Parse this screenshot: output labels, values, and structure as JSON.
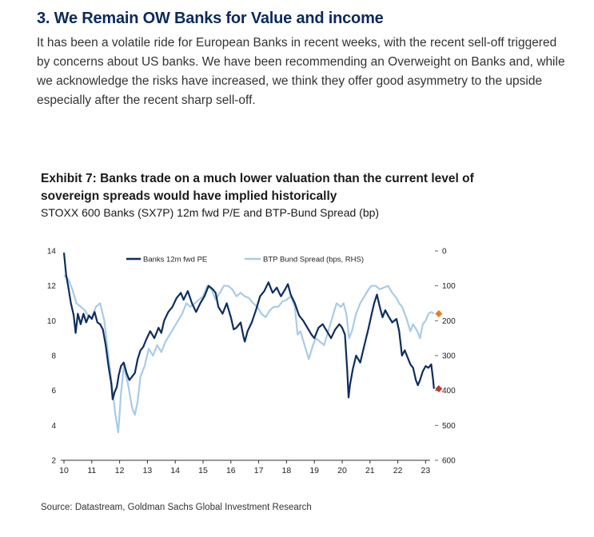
{
  "section": {
    "heading": "3. We Remain OW Banks for Value and income",
    "paragraph": "It has been a volatile ride for European Banks in recent weeks, with the recent sell-off triggered by concerns about US banks. We have been recommending an Overweight on Banks and, while we acknowledge the risks have increased, we think they offer good asymmetry to the upside especially after the recent sharp sell-off."
  },
  "exhibit": {
    "title": "Exhibit 7: Banks trade on a much lower valuation than the current level of sovereign spreads would have implied historically",
    "subtitle": "STOXX 600 Banks (SX7P) 12m fwd P/E and BTP-Bund Spread (bp)",
    "source": "Source: Datastream, Goldman Sachs Global Investment Research"
  },
  "colors": {
    "banks_series": "#0d2d5e",
    "spread_series": "#a8cbe8",
    "banks_end_marker": "#c0392b",
    "spread_end_marker": "#e67e22",
    "heading": "#0b2a5a"
  },
  "chart_data": {
    "type": "line",
    "x_tick_labels": [
      "10",
      "11",
      "12",
      "13",
      "14",
      "15",
      "16",
      "17",
      "18",
      "19",
      "20",
      "21",
      "22",
      "23"
    ],
    "xlim": [
      2010.0,
      2023.35
    ],
    "y_left": {
      "lim": [
        2,
        14
      ],
      "ticks": [
        "2",
        "4",
        "6",
        "8",
        "10",
        "12",
        "14"
      ]
    },
    "y_right": {
      "lim": [
        600,
        0
      ],
      "inverted": true,
      "ticks": [
        "600",
        "500",
        "400",
        "300",
        "200",
        "100",
        "0"
      ]
    },
    "legend_position": "top-center",
    "series": [
      {
        "name": "Banks 12m fwd PE",
        "axis": "left",
        "points": [
          [
            2010.0,
            13.9
          ],
          [
            2010.08,
            12.6
          ],
          [
            2010.15,
            12.0
          ],
          [
            2010.25,
            11.0
          ],
          [
            2010.35,
            10.3
          ],
          [
            2010.42,
            9.3
          ],
          [
            2010.5,
            10.4
          ],
          [
            2010.6,
            9.8
          ],
          [
            2010.7,
            10.4
          ],
          [
            2010.8,
            9.9
          ],
          [
            2010.9,
            10.3
          ],
          [
            2011.0,
            10.1
          ],
          [
            2011.1,
            10.5
          ],
          [
            2011.2,
            9.9
          ],
          [
            2011.3,
            9.8
          ],
          [
            2011.4,
            9.5
          ],
          [
            2011.5,
            8.6
          ],
          [
            2011.6,
            7.4
          ],
          [
            2011.7,
            6.4
          ],
          [
            2011.75,
            5.5
          ],
          [
            2011.82,
            5.9
          ],
          [
            2011.9,
            6.2
          ],
          [
            2011.97,
            6.9
          ],
          [
            2012.05,
            7.4
          ],
          [
            2012.15,
            7.6
          ],
          [
            2012.25,
            7.0
          ],
          [
            2012.35,
            6.6
          ],
          [
            2012.45,
            6.8
          ],
          [
            2012.55,
            7.0
          ],
          [
            2012.65,
            7.8
          ],
          [
            2012.75,
            8.3
          ],
          [
            2012.85,
            8.5
          ],
          [
            2012.95,
            8.9
          ],
          [
            2013.1,
            9.4
          ],
          [
            2013.25,
            9.0
          ],
          [
            2013.4,
            9.6
          ],
          [
            2013.5,
            9.3
          ],
          [
            2013.6,
            10.0
          ],
          [
            2013.75,
            10.5
          ],
          [
            2013.9,
            10.8
          ],
          [
            2014.05,
            11.3
          ],
          [
            2014.2,
            11.6
          ],
          [
            2014.3,
            11.2
          ],
          [
            2014.45,
            11.7
          ],
          [
            2014.6,
            11.0
          ],
          [
            2014.75,
            10.5
          ],
          [
            2014.9,
            11.0
          ],
          [
            2015.05,
            11.4
          ],
          [
            2015.2,
            12.0
          ],
          [
            2015.35,
            11.8
          ],
          [
            2015.45,
            11.6
          ],
          [
            2015.55,
            10.8
          ],
          [
            2015.7,
            10.4
          ],
          [
            2015.85,
            11.0
          ],
          [
            2016.0,
            10.2
          ],
          [
            2016.1,
            9.5
          ],
          [
            2016.2,
            9.6
          ],
          [
            2016.35,
            9.9
          ],
          [
            2016.45,
            9.1
          ],
          [
            2016.5,
            8.8
          ],
          [
            2016.6,
            9.4
          ],
          [
            2016.75,
            9.9
          ],
          [
            2016.9,
            10.6
          ],
          [
            2017.05,
            11.4
          ],
          [
            2017.2,
            11.7
          ],
          [
            2017.35,
            12.2
          ],
          [
            2017.5,
            11.6
          ],
          [
            2017.65,
            11.9
          ],
          [
            2017.8,
            11.4
          ],
          [
            2017.95,
            11.8
          ],
          [
            2018.05,
            12.1
          ],
          [
            2018.15,
            11.5
          ],
          [
            2018.3,
            11.0
          ],
          [
            2018.45,
            10.3
          ],
          [
            2018.6,
            10.0
          ],
          [
            2018.75,
            9.6
          ],
          [
            2018.9,
            9.2
          ],
          [
            2019.0,
            9.0
          ],
          [
            2019.15,
            9.6
          ],
          [
            2019.3,
            9.8
          ],
          [
            2019.45,
            9.4
          ],
          [
            2019.6,
            9.0
          ],
          [
            2019.75,
            9.5
          ],
          [
            2019.9,
            9.8
          ],
          [
            2020.0,
            9.6
          ],
          [
            2020.1,
            9.2
          ],
          [
            2020.18,
            7.2
          ],
          [
            2020.23,
            5.6
          ],
          [
            2020.28,
            6.3
          ],
          [
            2020.38,
            7.2
          ],
          [
            2020.5,
            8.0
          ],
          [
            2020.65,
            7.6
          ],
          [
            2020.8,
            8.6
          ],
          [
            2020.95,
            9.6
          ],
          [
            2021.05,
            10.3
          ],
          [
            2021.15,
            11.0
          ],
          [
            2021.25,
            11.5
          ],
          [
            2021.35,
            10.8
          ],
          [
            2021.45,
            10.2
          ],
          [
            2021.55,
            10.6
          ],
          [
            2021.65,
            10.3
          ],
          [
            2021.8,
            9.9
          ],
          [
            2021.95,
            10.1
          ],
          [
            2022.05,
            9.4
          ],
          [
            2022.15,
            8.0
          ],
          [
            2022.25,
            8.3
          ],
          [
            2022.35,
            7.9
          ],
          [
            2022.45,
            7.5
          ],
          [
            2022.55,
            7.3
          ],
          [
            2022.65,
            6.6
          ],
          [
            2022.72,
            6.3
          ],
          [
            2022.8,
            6.6
          ],
          [
            2022.9,
            7.1
          ],
          [
            2023.0,
            7.4
          ],
          [
            2023.1,
            7.3
          ],
          [
            2023.2,
            7.5
          ],
          [
            2023.27,
            6.6
          ],
          [
            2023.3,
            6.1
          ]
        ]
      },
      {
        "name": "BTP Bund Spread (bps, RHS)",
        "axis": "right",
        "points": [
          [
            2010.0,
            70
          ],
          [
            2010.15,
            80
          ],
          [
            2010.3,
            110
          ],
          [
            2010.45,
            150
          ],
          [
            2010.6,
            160
          ],
          [
            2010.75,
            170
          ],
          [
            2010.9,
            190
          ],
          [
            2011.0,
            190
          ],
          [
            2011.15,
            160
          ],
          [
            2011.3,
            150
          ],
          [
            2011.45,
            200
          ],
          [
            2011.55,
            270
          ],
          [
            2011.7,
            370
          ],
          [
            2011.85,
            470
          ],
          [
            2011.95,
            520
          ],
          [
            2012.05,
            410
          ],
          [
            2012.15,
            330
          ],
          [
            2012.3,
            380
          ],
          [
            2012.45,
            450
          ],
          [
            2012.55,
            470
          ],
          [
            2012.65,
            430
          ],
          [
            2012.75,
            360
          ],
          [
            2012.9,
            330
          ],
          [
            2013.05,
            280
          ],
          [
            2013.2,
            300
          ],
          [
            2013.35,
            270
          ],
          [
            2013.5,
            290
          ],
          [
            2013.65,
            260
          ],
          [
            2013.8,
            240
          ],
          [
            2013.95,
            220
          ],
          [
            2014.1,
            200
          ],
          [
            2014.25,
            180
          ],
          [
            2014.4,
            150
          ],
          [
            2014.55,
            160
          ],
          [
            2014.7,
            150
          ],
          [
            2014.85,
            140
          ],
          [
            2015.0,
            130
          ],
          [
            2015.15,
            100
          ],
          [
            2015.3,
            110
          ],
          [
            2015.45,
            140
          ],
          [
            2015.6,
            120
          ],
          [
            2015.75,
            100
          ],
          [
            2015.9,
            100
          ],
          [
            2016.05,
            110
          ],
          [
            2016.2,
            130
          ],
          [
            2016.35,
            120
          ],
          [
            2016.5,
            130
          ],
          [
            2016.65,
            135
          ],
          [
            2016.8,
            150
          ],
          [
            2016.95,
            160
          ],
          [
            2017.1,
            180
          ],
          [
            2017.25,
            190
          ],
          [
            2017.4,
            170
          ],
          [
            2017.55,
            160
          ],
          [
            2017.7,
            160
          ],
          [
            2017.85,
            145
          ],
          [
            2018.0,
            140
          ],
          [
            2018.15,
            130
          ],
          [
            2018.3,
            160
          ],
          [
            2018.4,
            240
          ],
          [
            2018.5,
            230
          ],
          [
            2018.65,
            270
          ],
          [
            2018.8,
            310
          ],
          [
            2018.95,
            270
          ],
          [
            2019.05,
            250
          ],
          [
            2019.2,
            260
          ],
          [
            2019.35,
            270
          ],
          [
            2019.5,
            230
          ],
          [
            2019.65,
            190
          ],
          [
            2019.8,
            150
          ],
          [
            2019.95,
            160
          ],
          [
            2020.05,
            150
          ],
          [
            2020.15,
            180
          ],
          [
            2020.25,
            250
          ],
          [
            2020.35,
            230
          ],
          [
            2020.5,
            180
          ],
          [
            2020.65,
            150
          ],
          [
            2020.8,
            130
          ],
          [
            2020.95,
            110
          ],
          [
            2021.05,
            100
          ],
          [
            2021.2,
            100
          ],
          [
            2021.35,
            110
          ],
          [
            2021.5,
            105
          ],
          [
            2021.65,
            100
          ],
          [
            2021.8,
            120
          ],
          [
            2021.95,
            135
          ],
          [
            2022.05,
            150
          ],
          [
            2022.15,
            160
          ],
          [
            2022.3,
            190
          ],
          [
            2022.45,
            230
          ],
          [
            2022.55,
            210
          ],
          [
            2022.7,
            230
          ],
          [
            2022.8,
            250
          ],
          [
            2022.9,
            210
          ],
          [
            2023.0,
            200
          ],
          [
            2023.1,
            180
          ],
          [
            2023.2,
            175
          ],
          [
            2023.3,
            180
          ]
        ]
      }
    ]
  }
}
